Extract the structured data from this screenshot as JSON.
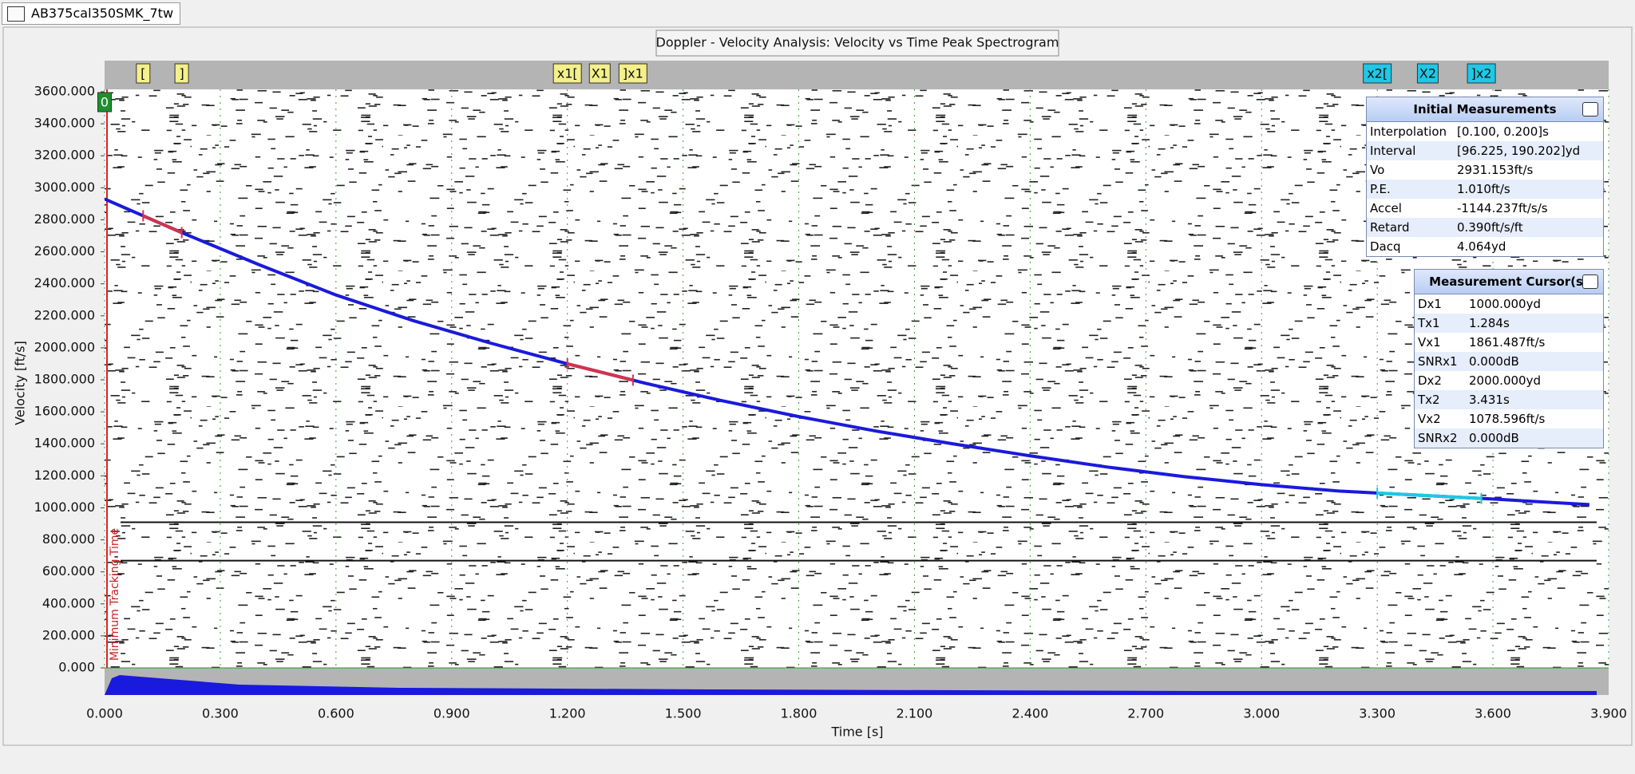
{
  "tab": {
    "title": "AB375cal350SMK_7tw"
  },
  "chart_data": {
    "type": "line",
    "title": "Doppler - Velocity Analysis: Velocity vs Time Peak Spectrogram",
    "x_label": "Time [s]",
    "y_label": "Velocity [ft/s]",
    "annotation": "Minimum Tracking Time",
    "x": [
      0,
      0.2,
      0.4,
      0.6,
      0.8,
      1.0,
      1.2,
      1.4,
      1.6,
      1.8,
      2.0,
      2.2,
      2.4,
      2.6,
      2.8,
      3.0,
      3.2,
      3.4,
      3.6,
      3.85
    ],
    "series": [
      {
        "color": "#1a1adc",
        "values": [
          2930,
          2720,
          2520,
          2330,
          2170,
          2030,
          1900,
          1780,
          1670,
          1570,
          1480,
          1400,
          1325,
          1255,
          1195,
          1145,
          1105,
          1080,
          1055,
          1020
        ]
      }
    ],
    "hlines": [
      910,
      670
    ],
    "markers": [
      {
        "label": "0",
        "x": 0,
        "color": "#1f8f2f"
      },
      {
        "label": "[",
        "x": 0.1,
        "color": "#f4f08a"
      },
      {
        "label": "]",
        "x": 0.2,
        "color": "#f4f08a"
      },
      {
        "label": "x1[",
        "x": 1.2,
        "color": "#f4f08a"
      },
      {
        "label": "X1",
        "x": 1.284,
        "color": "#f4f08a"
      },
      {
        "label": "]x1",
        "x": 1.37,
        "color": "#f4f08a"
      },
      {
        "label": "x2[",
        "x": 3.3,
        "color": "#1ec8e6"
      },
      {
        "label": "X2",
        "x": 3.431,
        "color": "#1ec8e6"
      },
      {
        "label": "]x2",
        "x": 3.57,
        "color": "#1ec8e6"
      }
    ],
    "xlim": [
      0,
      3.9
    ],
    "xticks": [
      {
        "value": 0,
        "label": "0.000"
      },
      {
        "value": 0.3,
        "label": "0.300"
      },
      {
        "value": 0.6,
        "label": "0.600"
      },
      {
        "value": 0.9,
        "label": "0.900"
      },
      {
        "value": 1.2,
        "label": "1.200"
      },
      {
        "value": 1.5,
        "label": "1.500"
      },
      {
        "value": 1.8,
        "label": "1.800"
      },
      {
        "value": 2.1,
        "label": "2.100"
      },
      {
        "value": 2.4,
        "label": "2.400"
      },
      {
        "value": 2.7,
        "label": "2.700"
      },
      {
        "value": 3.0,
        "label": "3.000"
      },
      {
        "value": 3.3,
        "label": "3.300"
      },
      {
        "value": 3.6,
        "label": "3.600"
      },
      {
        "value": 3.9,
        "label": "3.900"
      }
    ],
    "ylim": [
      0,
      3600
    ],
    "yticks": [
      {
        "value": 0,
        "label": "0.000"
      },
      {
        "value": 200,
        "label": "200.000"
      },
      {
        "value": 400,
        "label": "400.000"
      },
      {
        "value": 600,
        "label": "600.000"
      },
      {
        "value": 800,
        "label": "800.000"
      },
      {
        "value": 1000,
        "label": "1000.000"
      },
      {
        "value": 1200,
        "label": "1200.000"
      },
      {
        "value": 1400,
        "label": "1400.000"
      },
      {
        "value": 1600,
        "label": "1600.000"
      },
      {
        "value": 1800,
        "label": "1800.000"
      },
      {
        "value": 2000,
        "label": "2000.000"
      },
      {
        "value": 2200,
        "label": "2200.000"
      },
      {
        "value": 2400,
        "label": "2400.000"
      },
      {
        "value": 2600,
        "label": "2600.000"
      },
      {
        "value": 2800,
        "label": "2800.000"
      },
      {
        "value": 3000,
        "label": "3000.000"
      },
      {
        "value": 3200,
        "label": "3200.000"
      },
      {
        "value": 3400,
        "label": "3400.000"
      },
      {
        "value": 3600,
        "label": "3600.000"
      }
    ],
    "grid": true
  },
  "panels": [
    {
      "title": "Initial Measurements",
      "rows": [
        [
          "Interpolation",
          "[0.100, 0.200]s"
        ],
        [
          "Interval",
          "[96.225, 190.202]yd"
        ],
        [
          "Vo",
          "2931.153ft/s"
        ],
        [
          "P.E.",
          "1.010ft/s"
        ],
        [
          "Accel",
          "-1144.237ft/s/s"
        ],
        [
          "Retard",
          "0.390ft/s/ft"
        ],
        [
          "Dacq",
          "4.064yd"
        ]
      ]
    },
    {
      "title": "Measurement Cursor(s)",
      "rows": [
        [
          "Dx1",
          "1000.000yd"
        ],
        [
          "Tx1",
          "1.284s"
        ],
        [
          "Vx1",
          "1861.487ft/s"
        ],
        [
          "SNRx1",
          "0.000dB"
        ],
        [
          "Dx2",
          "2000.000yd"
        ],
        [
          "Tx2",
          "3.431s"
        ],
        [
          "Vx2",
          "1078.596ft/s"
        ],
        [
          "SNRx2",
          "0.000dB"
        ]
      ]
    }
  ]
}
